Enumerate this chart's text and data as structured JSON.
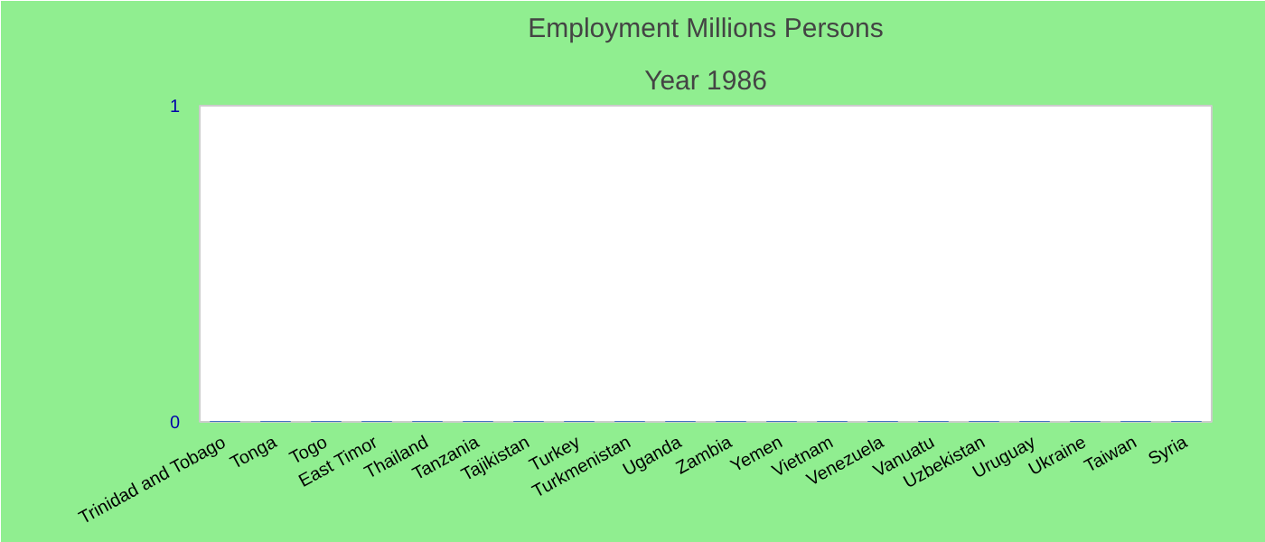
{
  "chart_data": {
    "type": "bar",
    "title": "Employment Millions Persons",
    "subtitle": "Year 1986",
    "categories": [
      "Trinidad and Tobago",
      "Tonga",
      "Togo",
      "East Timor",
      "Thailand",
      "Tanzania",
      "Tajikistan",
      "Turkey",
      "Turkmenistan",
      "Uganda",
      "Zambia",
      "Yemen",
      "Vietnam",
      "Venezuela",
      "Vanuatu",
      "Uzbekistan",
      "Uruguay",
      "Ukraine",
      "Taiwan",
      "Syria"
    ],
    "values": [
      0,
      0,
      0,
      0,
      0,
      0,
      0,
      0,
      0,
      0,
      0,
      0,
      0,
      0,
      0,
      0,
      0,
      0,
      0,
      0
    ],
    "color": "#4472c4",
    "ylim": [
      0,
      1
    ],
    "yticks": [
      0,
      1
    ],
    "grid": false
  }
}
